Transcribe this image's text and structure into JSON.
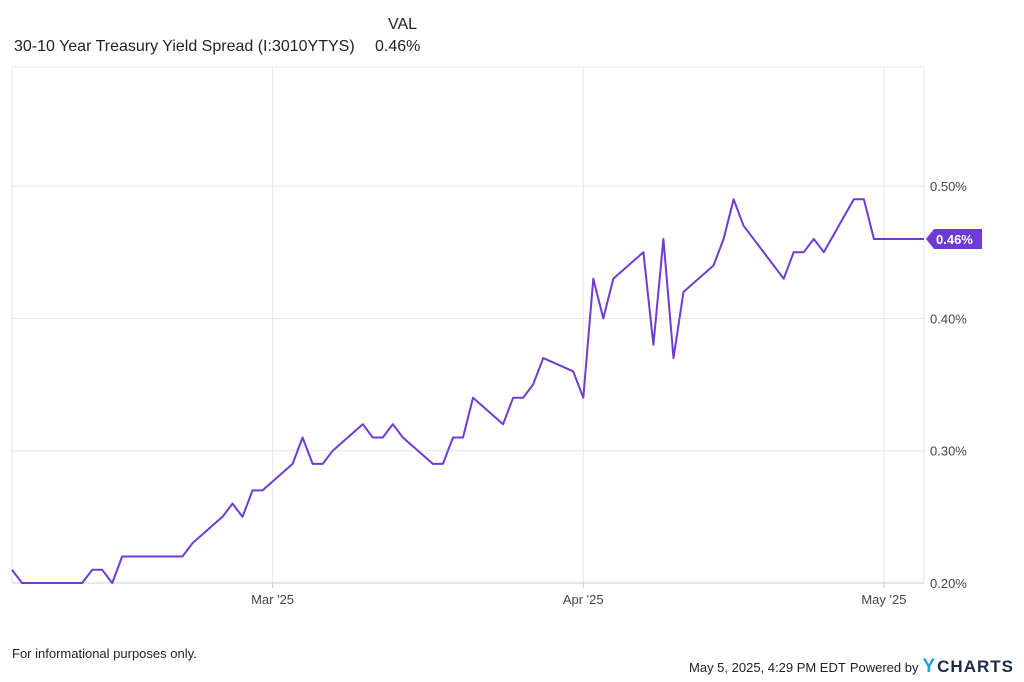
{
  "legend": {
    "column_header": "VAL",
    "series_name": "30-10 Year Treasury Yield Spread (I:3010YTYS)",
    "series_value": "0.46%"
  },
  "footer": {
    "disclaimer": "For informational purposes only.",
    "timestamp": "May 5, 2025, 4:29 PM EDT",
    "powered_by": "Powered by",
    "brand_initial": "Y",
    "brand_rest": "CHARTS"
  },
  "colors": {
    "series": "#6f3bd3",
    "grid": "#e6e6e6",
    "axis": "#cccccc"
  },
  "chart_data": {
    "type": "line",
    "title": "30-10 Year Treasury Yield Spread (I:3010YTYS)",
    "ylim": [
      0.2,
      0.59
    ],
    "xlim": [
      "2025-02-03",
      "2025-05-05"
    ],
    "grid": true,
    "y_ticks": [
      0.2,
      0.3,
      0.4,
      0.5
    ],
    "y_tick_labels": [
      "0.20%",
      "0.30%",
      "0.40%",
      "0.50%"
    ],
    "x_ticks": [
      "2025-03-01",
      "2025-04-01",
      "2025-05-01"
    ],
    "x_tick_labels": [
      "Mar '25",
      "Apr '25",
      "May '25"
    ],
    "last_value_label": "0.46%",
    "series": [
      {
        "name": "30-10 Year Treasury Yield Spread (I:3010YTYS)",
        "x": [
          "2025-02-03",
          "2025-02-04",
          "2025-02-05",
          "2025-02-06",
          "2025-02-07",
          "2025-02-10",
          "2025-02-11",
          "2025-02-12",
          "2025-02-13",
          "2025-02-14",
          "2025-02-18",
          "2025-02-19",
          "2025-02-20",
          "2025-02-21",
          "2025-02-24",
          "2025-02-25",
          "2025-02-26",
          "2025-02-27",
          "2025-02-28",
          "2025-03-03",
          "2025-03-04",
          "2025-03-05",
          "2025-03-06",
          "2025-03-07",
          "2025-03-10",
          "2025-03-11",
          "2025-03-12",
          "2025-03-13",
          "2025-03-14",
          "2025-03-17",
          "2025-03-18",
          "2025-03-19",
          "2025-03-20",
          "2025-03-21",
          "2025-03-24",
          "2025-03-25",
          "2025-03-26",
          "2025-03-27",
          "2025-03-28",
          "2025-03-31",
          "2025-04-01",
          "2025-04-02",
          "2025-04-03",
          "2025-04-04",
          "2025-04-07",
          "2025-04-08",
          "2025-04-09",
          "2025-04-10",
          "2025-04-11",
          "2025-04-14",
          "2025-04-15",
          "2025-04-16",
          "2025-04-17",
          "2025-04-21",
          "2025-04-22",
          "2025-04-23",
          "2025-04-24",
          "2025-04-25",
          "2025-04-28",
          "2025-04-29",
          "2025-04-30",
          "2025-05-01",
          "2025-05-02",
          "2025-05-05"
        ],
        "y": [
          0.21,
          0.2,
          0.2,
          0.2,
          0.2,
          0.2,
          0.21,
          0.21,
          0.2,
          0.22,
          0.22,
          0.22,
          0.22,
          0.23,
          0.25,
          0.26,
          0.25,
          0.27,
          0.27,
          0.29,
          0.31,
          0.29,
          0.29,
          0.3,
          0.32,
          0.31,
          0.31,
          0.32,
          0.31,
          0.29,
          0.29,
          0.31,
          0.31,
          0.34,
          0.32,
          0.34,
          0.34,
          0.35,
          0.37,
          0.36,
          0.34,
          0.43,
          0.4,
          0.43,
          0.45,
          0.38,
          0.46,
          0.37,
          0.42,
          0.44,
          0.46,
          0.49,
          0.47,
          0.43,
          0.45,
          0.45,
          0.46,
          0.45,
          0.49,
          0.49,
          0.46,
          0.46,
          0.46,
          0.46
        ]
      }
    ]
  }
}
